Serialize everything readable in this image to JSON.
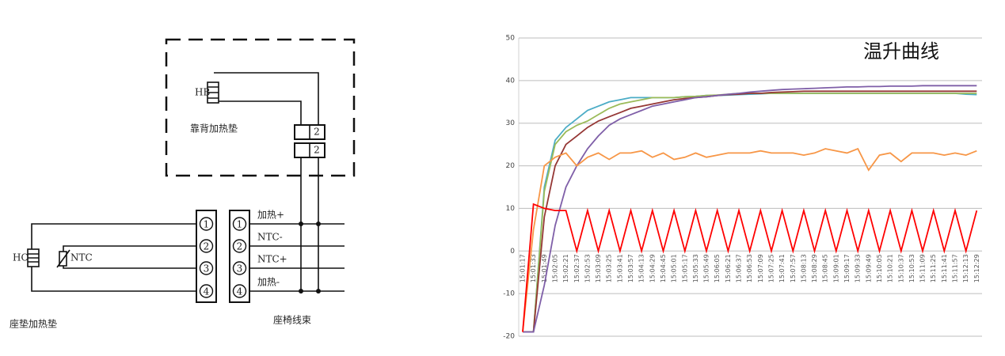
{
  "diagram": {
    "back_pad": {
      "component": "HB",
      "label": "靠背加热垫",
      "connector": [
        "2",
        "2"
      ]
    },
    "seat_pad": {
      "heater": "HC",
      "sensor": "NTC",
      "label": "座垫加热垫",
      "pins": [
        "1",
        "2",
        "3",
        "4"
      ]
    },
    "harness": {
      "label": "座椅线束",
      "pins": [
        "1",
        "2",
        "3",
        "4"
      ],
      "signals": [
        "加热+",
        "NTC-",
        "NTC+",
        "加热-"
      ]
    }
  },
  "chart_data": {
    "type": "line",
    "title": "温升曲线",
    "categories": [
      "15:01:17",
      "15:01:33",
      "15:01:49",
      "15:02:05",
      "15:02:21",
      "15:02:37",
      "15:02:53",
      "15:03:09",
      "15:03:25",
      "15:03:41",
      "15:03:57",
      "15:04:13",
      "15:04:29",
      "15:04:45",
      "15:05:01",
      "15:05:17",
      "15:05:33",
      "15:05:49",
      "15:06:05",
      "15:06:21",
      "15:06:37",
      "15:06:53",
      "15:07:09",
      "15:07:25",
      "15:07:41",
      "15:07:57",
      "15:08:13",
      "15:08:29",
      "15:08:45",
      "15:09:01",
      "15:09:17",
      "15:09:33",
      "15:09:49",
      "15:10:05",
      "15:10:21",
      "15:10:37",
      "15:10:53",
      "15:11:09",
      "15:11:25",
      "15:11:41",
      "15:11:57",
      "15:12:13",
      "15:12:29"
    ],
    "series": [
      {
        "color": "#4bacc6",
        "values": [
          -19,
          -19,
          15,
          26,
          29,
          31,
          33,
          34,
          35,
          35.5,
          36,
          36,
          36,
          36,
          36,
          36.2,
          36.3,
          36.5,
          36.5,
          36.6,
          36.7,
          36.8,
          36.9,
          37,
          37,
          37,
          37,
          37,
          37,
          37,
          37,
          37,
          37,
          37,
          37,
          37,
          37,
          37,
          37,
          37,
          37,
          36.8,
          36.7
        ]
      },
      {
        "color": "#9bbb59",
        "values": [
          -19,
          -19,
          14,
          25,
          28,
          29.5,
          30.5,
          32,
          33.5,
          34.5,
          35,
          35.5,
          36,
          36,
          36,
          36.2,
          36.3,
          36.5,
          36.6,
          36.8,
          37,
          37,
          37,
          37,
          37,
          37,
          37,
          37,
          37,
          37,
          37,
          37,
          37,
          37,
          37,
          37,
          37,
          37,
          37,
          37,
          37,
          37,
          37
        ]
      },
      {
        "color": "#953735",
        "values": [
          -19,
          -19,
          8,
          20,
          25,
          27,
          29,
          30.5,
          31.5,
          32.5,
          33.5,
          34,
          34.5,
          35,
          35.5,
          35.8,
          36,
          36.2,
          36.5,
          36.7,
          36.8,
          37,
          37,
          37.2,
          37.3,
          37.4,
          37.5,
          37.5,
          37.5,
          37.5,
          37.5,
          37.5,
          37.5,
          37.5,
          37.5,
          37.5,
          37.5,
          37.5,
          37.5,
          37.5,
          37.5,
          37.5,
          37.5
        ]
      },
      {
        "color": "#7f5fa8",
        "values": [
          -19,
          -19,
          -8,
          6,
          15,
          20,
          24,
          27,
          29.5,
          31,
          32,
          33,
          34,
          34.5,
          35,
          35.5,
          36,
          36.2,
          36.5,
          36.8,
          37,
          37.3,
          37.5,
          37.7,
          37.9,
          38,
          38.1,
          38.2,
          38.3,
          38.4,
          38.5,
          38.5,
          38.6,
          38.6,
          38.7,
          38.7,
          38.7,
          38.8,
          38.8,
          38.8,
          38.8,
          38.8,
          38.8
        ]
      },
      {
        "color": "#f79646",
        "values": [
          -19,
          5,
          20,
          22,
          23,
          20,
          22,
          23,
          21.5,
          23,
          23,
          23.5,
          22,
          23,
          21.5,
          22,
          23,
          22,
          22.5,
          23,
          23,
          23,
          23.5,
          23,
          23,
          23,
          22.5,
          23,
          24,
          23.5,
          23,
          24,
          19,
          22.5,
          23,
          21,
          23,
          23,
          23,
          22.5,
          23,
          22.5,
          23.5
        ]
      },
      {
        "color": "#ff0000",
        "values": [
          -19,
          11,
          10,
          9.5,
          9.5,
          0,
          9.5,
          0,
          9.5,
          0,
          9.5,
          0,
          9.5,
          0,
          9.5,
          0,
          9.5,
          0,
          9.5,
          0,
          9.5,
          0,
          9.5,
          0,
          9.5,
          0,
          9.5,
          0,
          9.5,
          0,
          9.5,
          0,
          9.5,
          0,
          9.5,
          0,
          9.5,
          0,
          9.5,
          0,
          9.5,
          0,
          9.5
        ]
      }
    ],
    "ylim": [
      -20,
      50
    ],
    "yticks": [
      -20,
      -10,
      0,
      10,
      20,
      30,
      40,
      50
    ],
    "grid": true
  }
}
